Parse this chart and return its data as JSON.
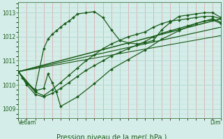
{
  "title": "Pression niveau de la mer( hPa )",
  "x_label_left": "Ve6am",
  "x_label_right": "Dim",
  "ylim": [
    1008.6,
    1013.45
  ],
  "yticks": [
    1009,
    1010,
    1011,
    1012,
    1013
  ],
  "xlim": [
    0,
    48
  ],
  "bg_color": "#d4ede8",
  "grid_color_major": "#c8e0da",
  "grid_color_minor": "#e8b8b8",
  "line_color": "#1a5c1a",
  "line1_x": [
    0,
    1,
    2,
    4,
    6,
    7,
    8,
    9,
    10,
    11,
    12,
    13,
    14,
    16,
    18,
    20,
    22,
    24,
    26,
    28,
    30,
    32,
    34,
    36,
    38,
    40,
    42,
    44,
    46,
    48
  ],
  "line1_y": [
    1010.55,
    1010.3,
    1010.05,
    1009.8,
    1011.5,
    1011.9,
    1012.1,
    1012.25,
    1012.4,
    1012.55,
    1012.65,
    1012.8,
    1012.95,
    1013.0,
    1013.05,
    1012.8,
    1012.3,
    1011.85,
    1011.75,
    1011.7,
    1011.75,
    1011.85,
    1012.3,
    1012.6,
    1012.85,
    1012.9,
    1012.95,
    1013.0,
    1013.0,
    1012.8
  ],
  "line2_x": [
    0,
    2,
    4,
    6,
    8,
    10,
    12,
    14,
    16,
    18,
    20,
    22,
    24,
    26,
    28,
    30,
    32,
    34,
    36,
    38,
    40,
    42,
    44,
    46,
    48
  ],
  "line2_y": [
    1010.55,
    1010.1,
    1009.7,
    1009.55,
    1009.8,
    1010.1,
    1010.4,
    1010.7,
    1011.0,
    1011.25,
    1011.5,
    1011.7,
    1011.85,
    1012.0,
    1012.1,
    1012.2,
    1012.4,
    1012.55,
    1012.65,
    1012.7,
    1012.75,
    1012.8,
    1012.85,
    1012.85,
    1012.75
  ],
  "line3_x": [
    0,
    2,
    4,
    6,
    8,
    10,
    12,
    14,
    16,
    18,
    20,
    22,
    24,
    26,
    28,
    30,
    32,
    34,
    36,
    38,
    40,
    42,
    44,
    46,
    48
  ],
  "line3_y": [
    1010.55,
    1010.0,
    1009.6,
    1009.5,
    1009.65,
    1009.85,
    1010.1,
    1010.35,
    1010.6,
    1010.8,
    1011.0,
    1011.2,
    1011.35,
    1011.5,
    1011.65,
    1011.8,
    1012.0,
    1012.15,
    1012.25,
    1012.35,
    1012.45,
    1012.55,
    1012.65,
    1012.7,
    1012.55
  ],
  "line4_x": [
    0,
    4,
    6,
    7,
    8,
    9,
    10,
    14,
    18,
    22,
    26,
    30,
    34,
    38,
    42,
    46,
    48
  ],
  "line4_y": [
    1010.55,
    1009.75,
    1009.85,
    1010.45,
    1010.1,
    1009.7,
    1009.1,
    1009.5,
    1010.05,
    1010.65,
    1011.05,
    1011.45,
    1011.9,
    1012.25,
    1012.55,
    1012.75,
    1012.6
  ],
  "trend1_x": [
    0,
    48
  ],
  "trend1_y": [
    1010.55,
    1012.75
  ],
  "trend2_x": [
    0,
    48
  ],
  "trend2_y": [
    1010.55,
    1012.4
  ],
  "trend3_x": [
    0,
    48
  ],
  "trend3_y": [
    1010.55,
    1012.05
  ]
}
